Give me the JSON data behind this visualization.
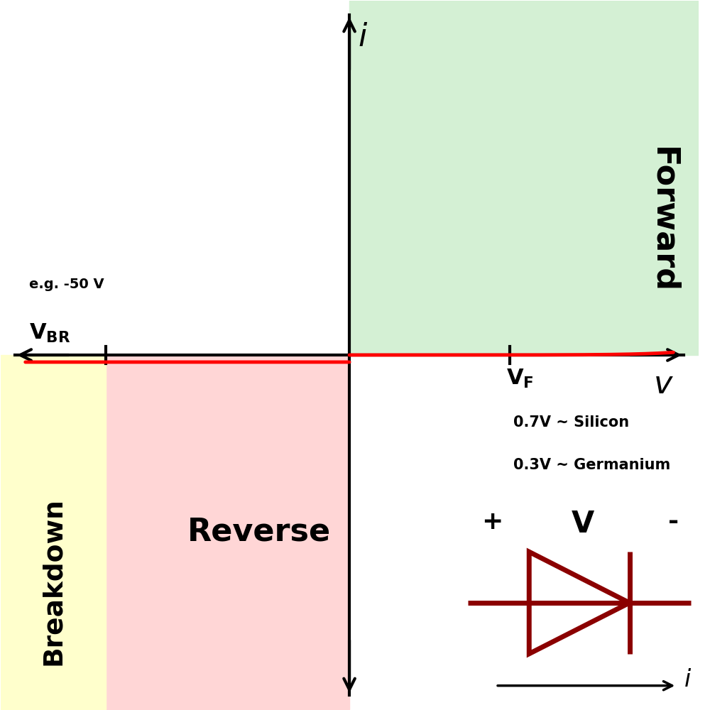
{
  "curve_color": "#FF0000",
  "forward_region_color": "#d4f0d4",
  "reverse_region_color": "#ffd6d6",
  "breakdown_region_color": "#ffffcc",
  "diode_color": "#8B0000",
  "axis_lw": 3.0,
  "curve_lw": 3.5,
  "xlim": [
    -5.0,
    5.0
  ],
  "ylim": [
    -5.0,
    5.0
  ],
  "vbr_x": -3.5,
  "vf_x": 2.3,
  "forward_label": "Forward",
  "reverse_label": "Reverse",
  "breakdown_label": "Breakdown",
  "vbr_example": "e.g. -50 V",
  "vf_note1": "0.7V ~ Silicon",
  "vf_note2": "0.3V ~ Germanium",
  "diode_plus": "+",
  "diode_V": "V",
  "diode_minus": "-"
}
